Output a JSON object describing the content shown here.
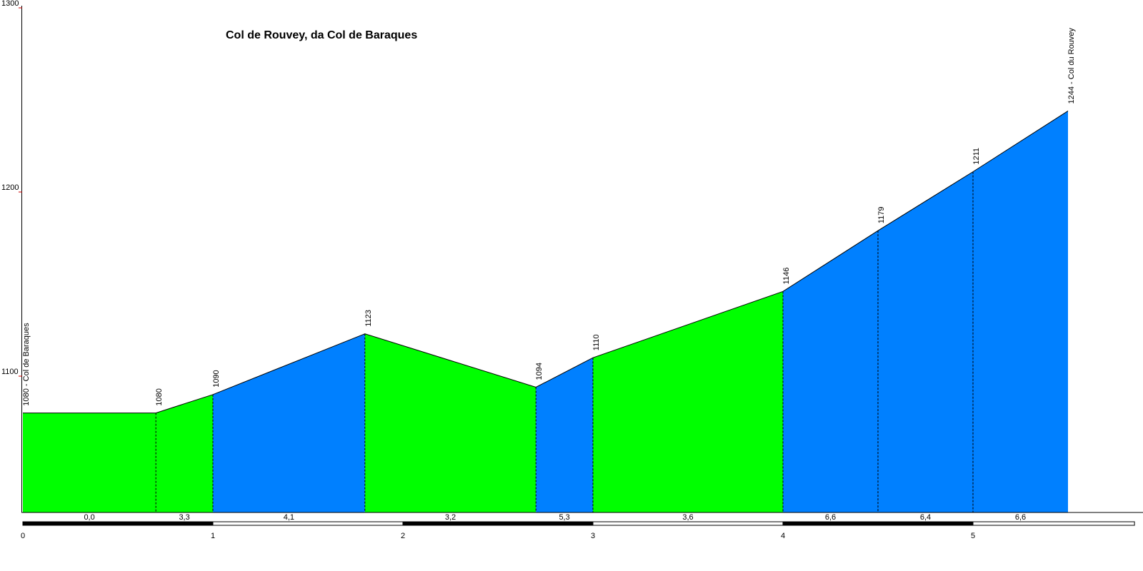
{
  "chart_data": {
    "type": "area",
    "title": "Col de Rouvey, da Col de Baraques",
    "xlabel": "",
    "ylabel": "",
    "xlim": [
      0,
      5.85
    ],
    "ylim": [
      1026,
      1300
    ],
    "x_ticks": [
      "0",
      "1",
      "2",
      "3",
      "4",
      "5"
    ],
    "y_ticks": [
      "1100",
      "1200",
      "1300"
    ],
    "profile": [
      {
        "x": 0.0,
        "y": 1080,
        "label": "1080 - Col de Baraques"
      },
      {
        "x": 0.7,
        "y": 1080,
        "label": "1080"
      },
      {
        "x": 1.0,
        "y": 1090,
        "label": "1090"
      },
      {
        "x": 1.8,
        "y": 1123,
        "label": "1123"
      },
      {
        "x": 2.7,
        "y": 1094,
        "label": "1094"
      },
      {
        "x": 3.0,
        "y": 1110,
        "label": "1110"
      },
      {
        "x": 4.0,
        "y": 1146,
        "label": "1146"
      },
      {
        "x": 4.5,
        "y": 1179,
        "label": "1179"
      },
      {
        "x": 5.0,
        "y": 1211,
        "label": "1211"
      },
      {
        "x": 5.5,
        "y": 1244,
        "label": "1244 - Col du Rouvey"
      }
    ],
    "segments": [
      {
        "from": 0.0,
        "to": 0.7,
        "gradient": "0,0",
        "color": "#00ff00"
      },
      {
        "from": 0.7,
        "to": 1.0,
        "gradient": "3,3",
        "color": "#00ff00"
      },
      {
        "from": 1.0,
        "to": 1.8,
        "gradient": "4,1",
        "color": "#0080ff"
      },
      {
        "from": 1.8,
        "to": 2.7,
        "gradient": "3,2",
        "color": "#00ff00"
      },
      {
        "from": 2.7,
        "to": 3.0,
        "gradient": "5,3",
        "color": "#0080ff"
      },
      {
        "from": 3.0,
        "to": 4.0,
        "gradient": "3,6",
        "color": "#00ff00"
      },
      {
        "from": 4.0,
        "to": 4.5,
        "gradient": "6,6",
        "color": "#0080ff"
      },
      {
        "from": 4.5,
        "to": 5.0,
        "gradient": "6,4",
        "color": "#0080ff"
      },
      {
        "from": 5.0,
        "to": 5.5,
        "gradient": "6,6",
        "color": "#0080ff"
      }
    ],
    "km_bar": [
      {
        "from": 0,
        "to": 1,
        "color": "#000000"
      },
      {
        "from": 1,
        "to": 2,
        "color": "#ffffff"
      },
      {
        "from": 2,
        "to": 3,
        "color": "#000000"
      },
      {
        "from": 3,
        "to": 4,
        "color": "#ffffff"
      },
      {
        "from": 4,
        "to": 5,
        "color": "#000000"
      },
      {
        "from": 5,
        "to": 5.85,
        "color": "#ffffff"
      }
    ],
    "grid": false
  }
}
